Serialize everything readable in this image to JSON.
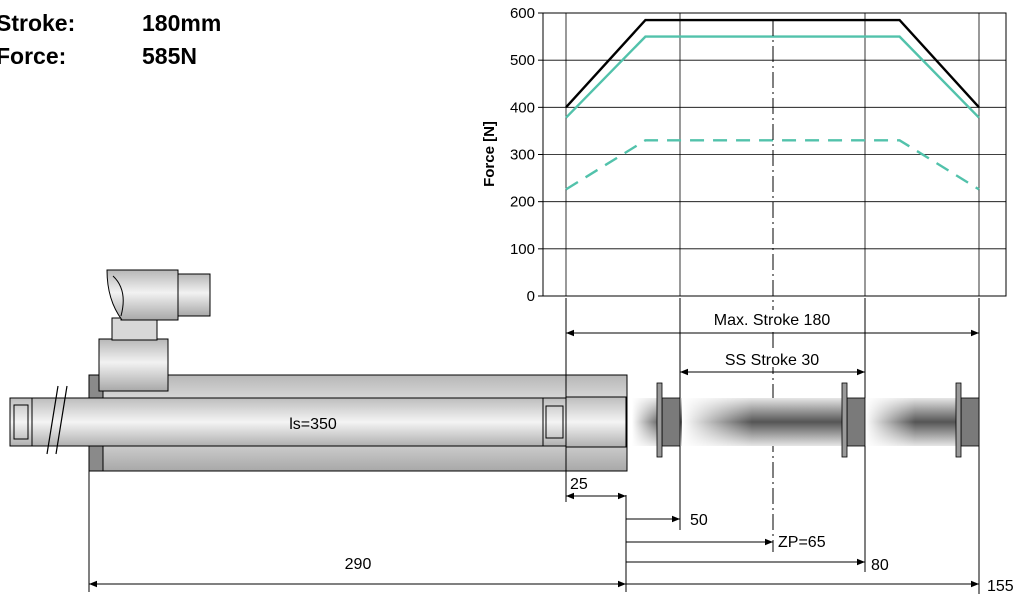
{
  "specs": {
    "stroke_label": "Stroke:",
    "stroke_value": "180mm",
    "force_label": "Force:",
    "force_value": "585N"
  },
  "chart_data": {
    "type": "line",
    "ylabel": "Force [N]",
    "ylim": [
      0,
      600
    ],
    "yticks": [
      "0",
      "100",
      "200",
      "300",
      "400",
      "500",
      "600"
    ],
    "x": [
      0,
      25,
      65,
      105,
      130
    ],
    "series": [
      {
        "values": [
          400,
          585,
          585,
          585,
          400
        ],
        "color": "#000000",
        "style": "solid"
      },
      {
        "values": [
          378,
          550,
          550,
          550,
          378
        ],
        "color": "#52c2ab",
        "style": "solid"
      },
      {
        "values": [
          226,
          330,
          330,
          330,
          226
        ],
        "color": "#52c2ab",
        "style": "dashed"
      }
    ],
    "grid": true
  },
  "dimensions": {
    "max_stroke": "Max. Stroke 180",
    "ss_stroke": "SS Stroke 30",
    "rod_length": "ls=350",
    "d25": "25",
    "d50": "50",
    "zp": "ZP=65",
    "d80": "80",
    "d290": "290",
    "d155": "155"
  }
}
